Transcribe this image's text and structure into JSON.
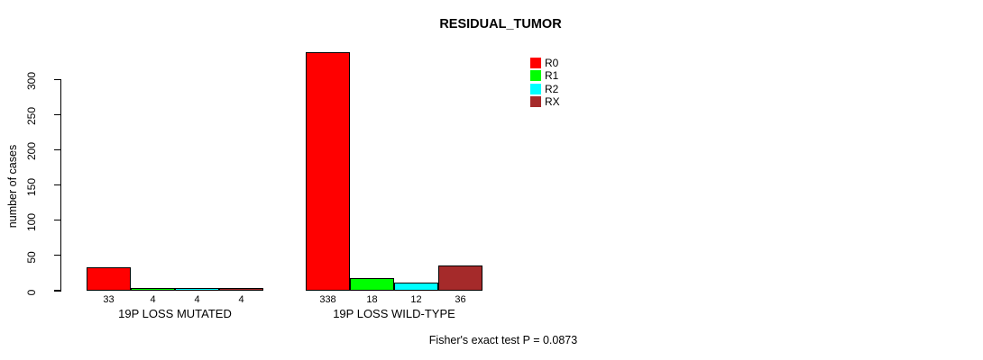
{
  "chart_data": {
    "type": "bar",
    "title": "RESIDUAL_TUMOR",
    "ylabel": "number of cases",
    "xlabel": "",
    "ylim": [
      0,
      300
    ],
    "yticks": [
      0,
      50,
      100,
      150,
      200,
      250,
      300
    ],
    "grid": false,
    "legend_position": "top-right-inside",
    "categories": [
      "19P LOSS MUTATED",
      "19P LOSS WILD-TYPE"
    ],
    "series": [
      {
        "name": "R0",
        "color": "#ff0000",
        "values": [
          33,
          338
        ]
      },
      {
        "name": "R1",
        "color": "#00ff00",
        "values": [
          4,
          18
        ]
      },
      {
        "name": "R2",
        "color": "#00ffff",
        "values": [
          4,
          12
        ]
      },
      {
        "name": "RX",
        "color": "#a52a2a",
        "values": [
          4,
          36
        ]
      }
    ],
    "bar_value_labels": [
      [
        "33",
        "4",
        "4",
        "4"
      ],
      [
        "338",
        "18",
        "12",
        "36"
      ]
    ],
    "annotation": "Fisher's exact test P = 0.0873",
    "colors": {
      "axis": "#000000",
      "bar_border": "#000000",
      "background": "#ffffff",
      "text": "#000000"
    }
  }
}
